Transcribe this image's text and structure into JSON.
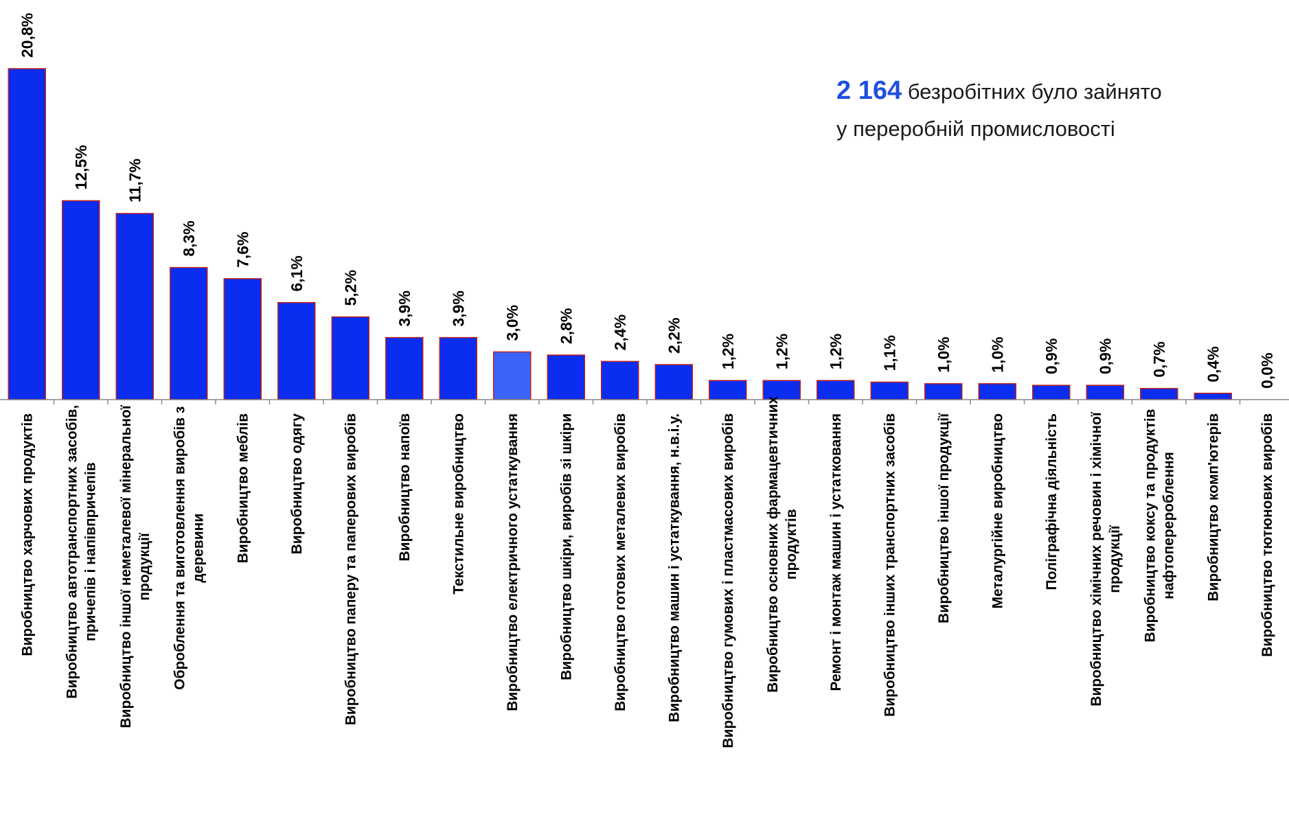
{
  "annotation": {
    "value": "2 164",
    "text_line1": " безробітних було зайнято",
    "text_line2": "у переробній промисловості"
  },
  "colors": {
    "bar": "#0a2df0",
    "bar_highlight": "#3b63f7",
    "bar_border": "#c0201c",
    "annotation_value": "#1f4fe0"
  },
  "chart_data": {
    "type": "bar",
    "orientation": "vertical",
    "value_unit": "%",
    "ylim": [
      0,
      21
    ],
    "grid": false,
    "legend": false,
    "highlight_index": 9,
    "categories": [
      "Виробництво харчових продуктів",
      "Виробництво автотранспортних засобів, причепів і напівпричепів",
      "Виробництво іншої неметалевої мінеральної продукції",
      "Оброблення та виготовлення виробів з деревини",
      "Виробництво меблів",
      "Виробництво одягу",
      "Виробництво паперу та паперових виробів",
      "Виробництво напоїв",
      "Текстильне виробництво",
      "Виробництво електричного устаткування",
      "Виробництво шкіри, виробів зі шкіри",
      "Виробництво готових металевих виробів",
      "Виробництво машин і устаткування, н.в.і.у.",
      "Виробництво гумових і пластмасових виробів",
      "Виробництво основних фармацевтичних продуктів",
      "Ремонт і монтаж машин і устатковання",
      "Виробництво інших транспортних засобів",
      "Виробництво іншої продукції",
      "Металургійне виробництво",
      "Поліграфічна діяльність",
      "Виробництво хімічних речовин і хімічної продукції",
      "Виробництво коксу та продуктів нафтоперероблення",
      "Виробництво комп'ютерів",
      "Виробництво тютюнових виробів"
    ],
    "values": [
      20.8,
      12.5,
      11.7,
      8.3,
      7.6,
      6.1,
      5.2,
      3.9,
      3.9,
      3.0,
      2.8,
      2.4,
      2.2,
      1.2,
      1.2,
      1.2,
      1.1,
      1.0,
      1.0,
      0.9,
      0.9,
      0.7,
      0.4,
      0.0
    ],
    "value_labels": [
      "20,8%",
      "12,5%",
      "11,7%",
      "8,3%",
      "7,6%",
      "6,1%",
      "5,2%",
      "3,9%",
      "3,9%",
      "3,0%",
      "2,8%",
      "2,4%",
      "2,2%",
      "1,2%",
      "1,2%",
      "1,2%",
      "1,1%",
      "1,0%",
      "1,0%",
      "0,9%",
      "0,9%",
      "0,7%",
      "0,4%",
      "0,0%"
    ],
    "category_label_lines": [
      [
        "Виробництво харчових продуктів"
      ],
      [
        "Виробництво автотранспортних засобів,",
        "причепів і напівпричепів"
      ],
      [
        "Виробництво іншої неметалевої мінеральної",
        "продукції"
      ],
      [
        "Оброблення та виготовлення виробів з",
        "деревини"
      ],
      [
        "Виробництво меблів"
      ],
      [
        "Виробництво одягу"
      ],
      [
        "Виробництво паперу та паперових виробів"
      ],
      [
        "Виробництво напоїв"
      ],
      [
        "Текстильне виробництво"
      ],
      [
        "Виробництво електричного устаткування"
      ],
      [
        "Виробництво шкіри, виробів зі шкіри"
      ],
      [
        "Виробництво готових металевих виробів"
      ],
      [
        "Виробництво машин і устаткування, н.в.і.у."
      ],
      [
        "Виробництво гумових і пластмасових виробів"
      ],
      [
        "Виробництво основних фармацевтичних",
        "продуктів"
      ],
      [
        "Ремонт і монтаж машин і устатковання"
      ],
      [
        "Виробництво інших транспортних засобів"
      ],
      [
        "Виробництво іншої продукції"
      ],
      [
        "Металургійне виробництво"
      ],
      [
        "Поліграфічна діяльність"
      ],
      [
        "Виробництво хімічних речовин і хімічної",
        "продукції"
      ],
      [
        "Виробництво коксу та продуктів",
        "нафтоперероблення"
      ],
      [
        "Виробництво комп'ютерів"
      ],
      [
        "Виробництво тютюнових виробів"
      ]
    ]
  }
}
